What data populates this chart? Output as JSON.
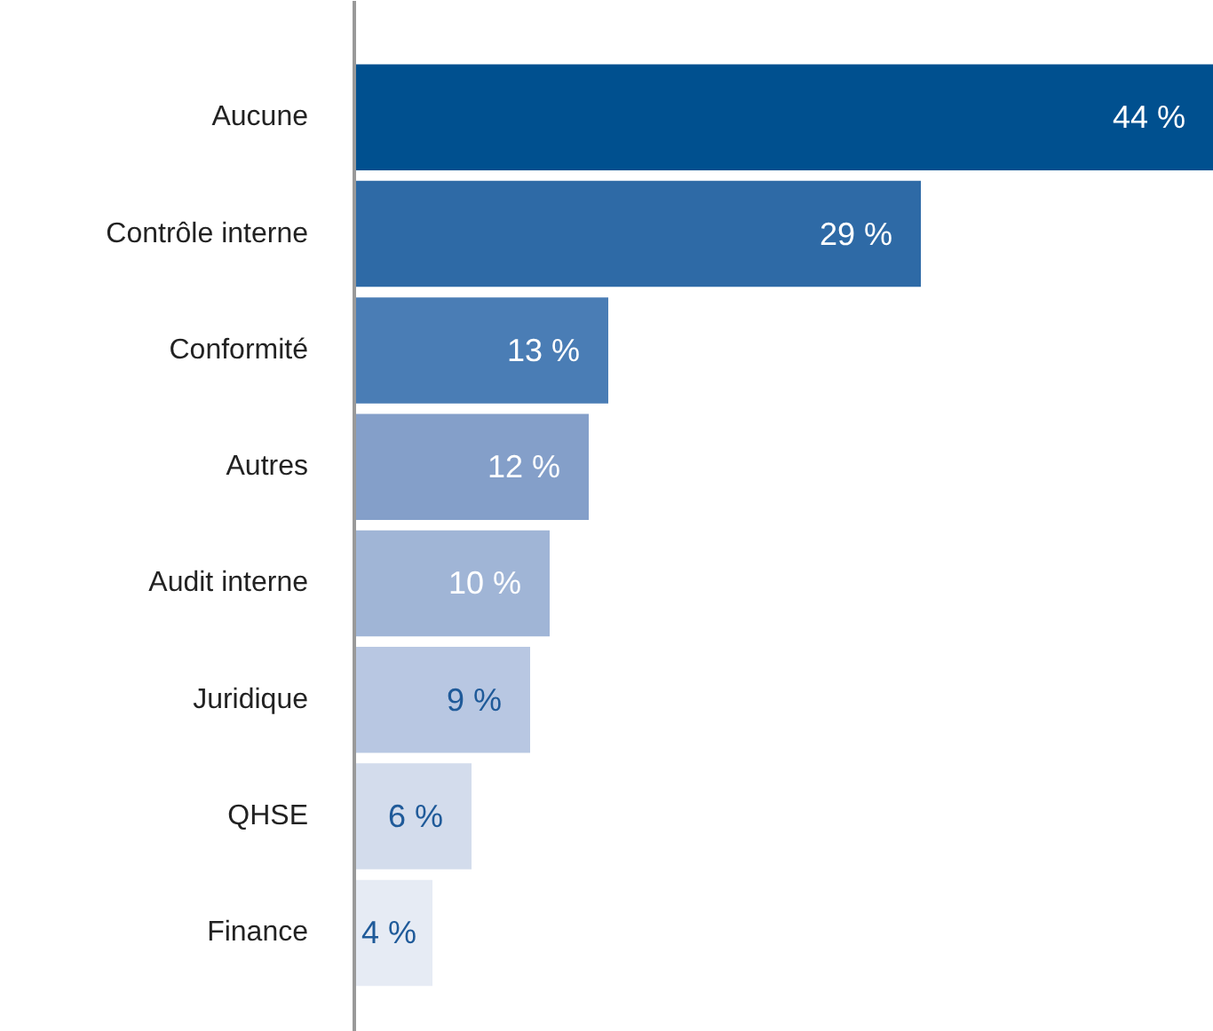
{
  "chart_data": {
    "type": "bar",
    "orientation": "horizontal",
    "categories": [
      "Aucune",
      "Contrôle interne",
      "Conformité",
      "Autres",
      "Audit interne",
      "Juridique",
      "QHSE",
      "Finance"
    ],
    "values": [
      44,
      29,
      13,
      12,
      10,
      9,
      6,
      4
    ],
    "colors": [
      "#00508f",
      "#2e6aa6",
      "#4a7db5",
      "#849fc9",
      "#a0b5d6",
      "#b8c7e2",
      "#d3dcec",
      "#e6ebf4"
    ],
    "value_labels": [
      "44 %",
      "29 %",
      "13 %",
      "12 %",
      "10 %",
      "9 %",
      "6 %",
      "4 %"
    ],
    "grid": false
  }
}
